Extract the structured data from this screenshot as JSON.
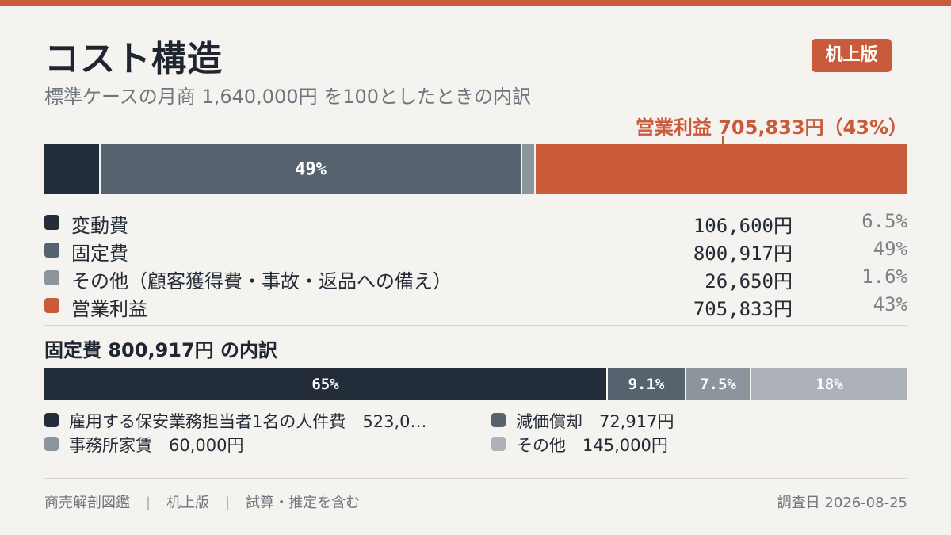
{
  "header": {
    "title": "コスト構造",
    "subtitle": "標準ケースの月商 1,640,000円 を100としたときの内訳",
    "badge": "机上版"
  },
  "profit_callout": "営業利益 705,833円（43%）",
  "colors": {
    "accent": "#c95a3a",
    "variable": "#232d3a",
    "fixed": "#56636f",
    "other": "#8c949c",
    "profit": "#c95a3a",
    "fixed_breakdown": [
      "#232d3a",
      "#56636f",
      "#8c949c",
      "#adb2b8"
    ]
  },
  "chart_data": [
    {
      "type": "bar",
      "stacked": true,
      "orientation": "horizontal",
      "total": 1640000,
      "segments": [
        {
          "name": "変動費",
          "amount": "106,600円",
          "value": 106600,
          "percent": "6.5%",
          "share": 6.5,
          "bar_label": ""
        },
        {
          "name": "固定費",
          "amount": "800,917円",
          "value": 800917,
          "percent": "49%",
          "share": 49,
          "bar_label": "49%"
        },
        {
          "name": "その他（顧客獲得費・事故・返品への備え）",
          "amount": "26,650円",
          "value": 26650,
          "percent": "1.6%",
          "share": 1.6,
          "bar_label": ""
        },
        {
          "name": "営業利益",
          "amount": "705,833円",
          "value": 705833,
          "percent": "43%",
          "share": 43,
          "bar_label": ""
        }
      ]
    },
    {
      "type": "bar",
      "stacked": true,
      "orientation": "horizontal",
      "title": "固定費 800,917円 の内訳",
      "total": 800917,
      "segments": [
        {
          "name": "雇用する保安業務担当者1名の人件費　523,0…",
          "value": 523000,
          "percent": "65%",
          "share": 65
        },
        {
          "name": "減価償却　72,917円",
          "value": 72917,
          "percent": "9.1%",
          "share": 9.1
        },
        {
          "name": "事務所家賃　60,000円",
          "value": 60000,
          "percent": "7.5%",
          "share": 7.5
        },
        {
          "name": "その他　145,000円",
          "value": 145000,
          "percent": "18%",
          "share": 18
        }
      ]
    }
  ],
  "footer": {
    "left_items": [
      "商売解剖図鑑",
      "机上版",
      "試算・推定を含む"
    ],
    "separator": "|",
    "right": "調査日 2026-08-25"
  }
}
